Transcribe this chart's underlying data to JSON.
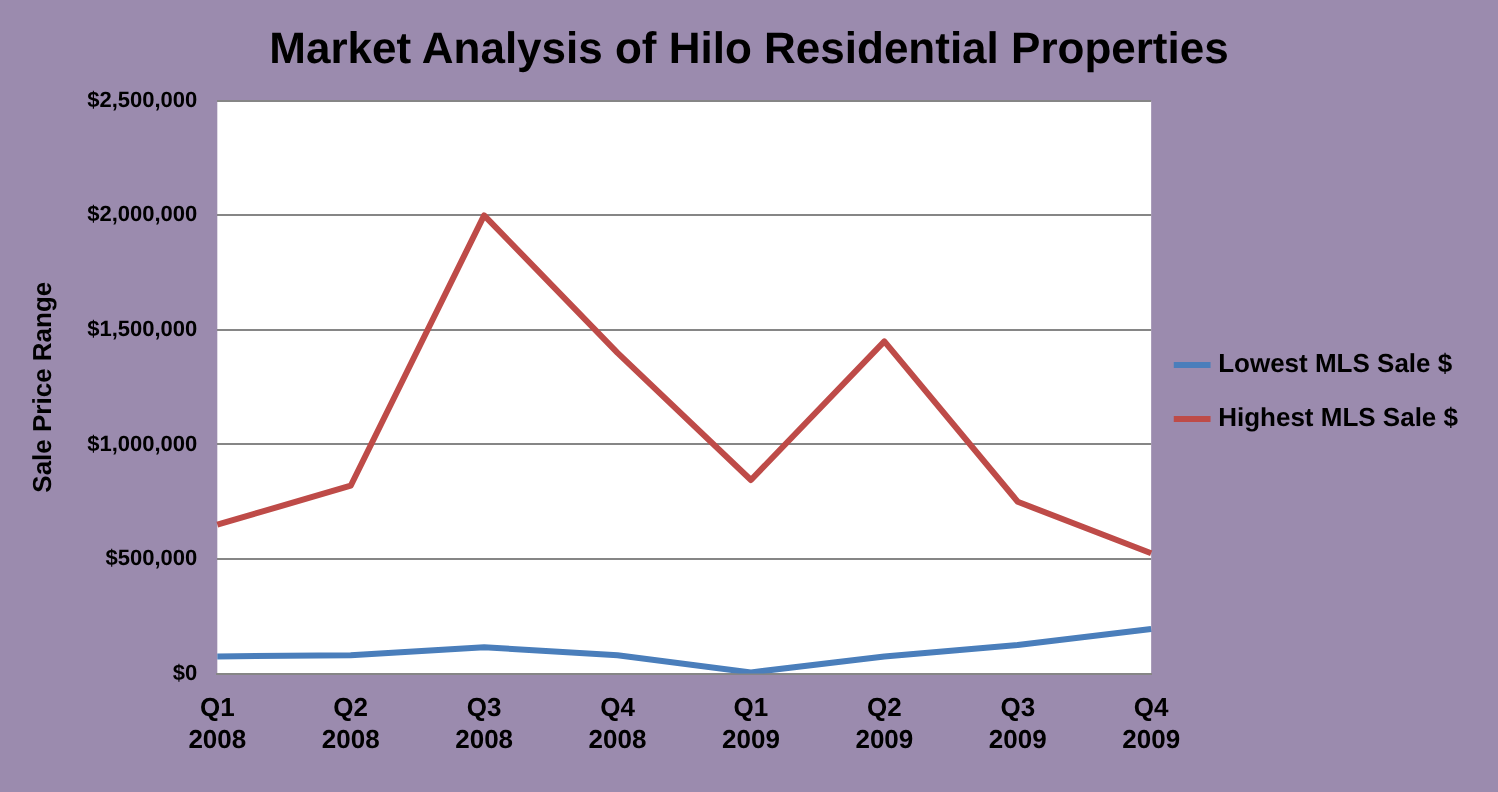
{
  "chart_data": {
    "type": "line",
    "title": "Market Analysis of Hilo Residential Properties",
    "ylabel": "Sale Price Range",
    "categories": [
      "Q1 2008",
      "Q2 2008",
      "Q3 2008",
      "Q4 2008",
      "Q1 2009",
      "Q2 2009",
      "Q3 2009",
      "Q4 2009"
    ],
    "series": [
      {
        "name": "Lowest MLS Sale $",
        "color": "#4a7ebb",
        "values": [
          75000,
          80000,
          115000,
          80000,
          5000,
          75000,
          125000,
          195000
        ]
      },
      {
        "name": "Highest MLS Sale $",
        "color": "#be4b48",
        "values": [
          650000,
          820000,
          2000000,
          1400000,
          845000,
          1450000,
          750000,
          525000
        ]
      }
    ],
    "ylim": [
      0,
      2500000
    ],
    "yticks": [
      {
        "value": 0,
        "label": "$0"
      },
      {
        "value": 500000,
        "label": "$500,000"
      },
      {
        "value": 1000000,
        "label": "$1,000,000"
      },
      {
        "value": 1500000,
        "label": "$1,500,000"
      },
      {
        "value": 2000000,
        "label": "$2,000,000"
      },
      {
        "value": 2500000,
        "label": "$2,500,000"
      }
    ],
    "grid": "y",
    "legend": "right",
    "marker": "none",
    "line_style": "solid"
  }
}
